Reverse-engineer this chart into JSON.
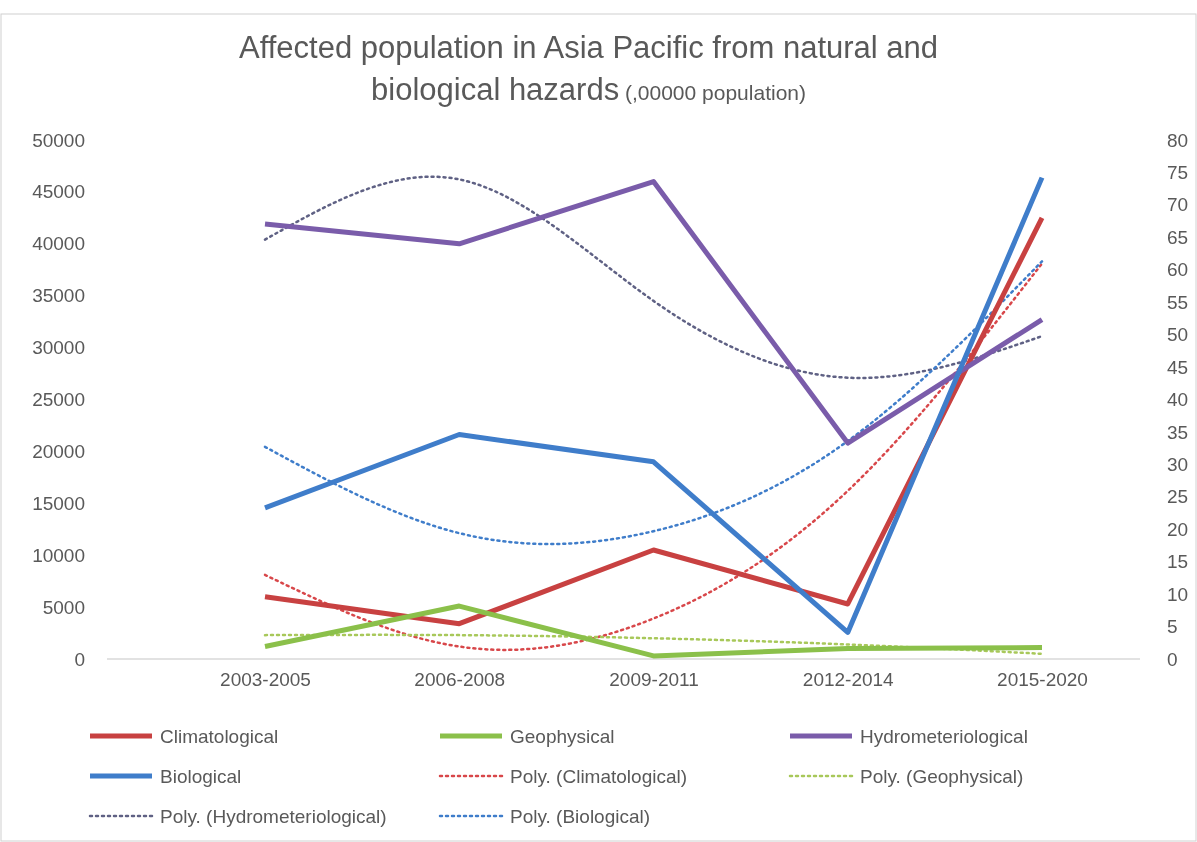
{
  "chart_data": {
    "type": "line",
    "title": "Affected population in Asia Pacific from natural and biological hazards",
    "subtitle": "(,00000 population)",
    "categories": [
      "2003-2005",
      "2006-2008",
      "2009-2011",
      "2012-2014",
      "2015-2020"
    ],
    "ylim": [
      0,
      50000
    ],
    "yticks": [
      0,
      5000,
      10000,
      15000,
      20000,
      25000,
      30000,
      35000,
      40000,
      45000,
      50000
    ],
    "y2lim": [
      0,
      80
    ],
    "y2ticks": [
      0,
      5,
      10,
      15,
      20,
      25,
      30,
      35,
      40,
      45,
      50,
      55,
      60,
      65,
      70,
      75,
      80
    ],
    "grid": false,
    "legend": "bottom",
    "series": [
      {
        "name": "Climatological",
        "color": "#c84141",
        "values": [
          6000,
          3400,
          10500,
          5300,
          42500
        ]
      },
      {
        "name": "Geophysical",
        "color": "#8bc04a",
        "values": [
          1200,
          5100,
          300,
          1000,
          1100
        ]
      },
      {
        "name": "Hydrometeriological",
        "color": "#7a5caa",
        "values": [
          41900,
          40000,
          46000,
          20800,
          32700
        ]
      },
      {
        "name": "Biological",
        "color": "#3f7dca",
        "axis": "y2",
        "values": [
          23.3,
          34.6,
          30.4,
          4.1,
          74.2
        ]
      },
      {
        "name": "Poly. (Climatological)",
        "color": "#d8474a",
        "line_style": "dotted",
        "values": [
          8100,
          1200,
          3900,
          16200,
          38100
        ]
      },
      {
        "name": "Poly. (Geophysical)",
        "color": "#a8c85a",
        "line_style": "dotted",
        "values": [
          2300,
          2300,
          2000,
          1400,
          500
        ]
      },
      {
        "name": "Poly. (Hydrometeriological)",
        "color": "#5f6184",
        "line_style": "dotted",
        "values": [
          40400,
          46200,
          34500,
          27100,
          31100
        ]
      },
      {
        "name": "Poly. (Biological)",
        "color": "#3f7dca",
        "line_style": "dotted",
        "axis": "y2",
        "values": [
          32.7,
          19.4,
          19.7,
          33.6,
          61.3
        ]
      }
    ]
  }
}
